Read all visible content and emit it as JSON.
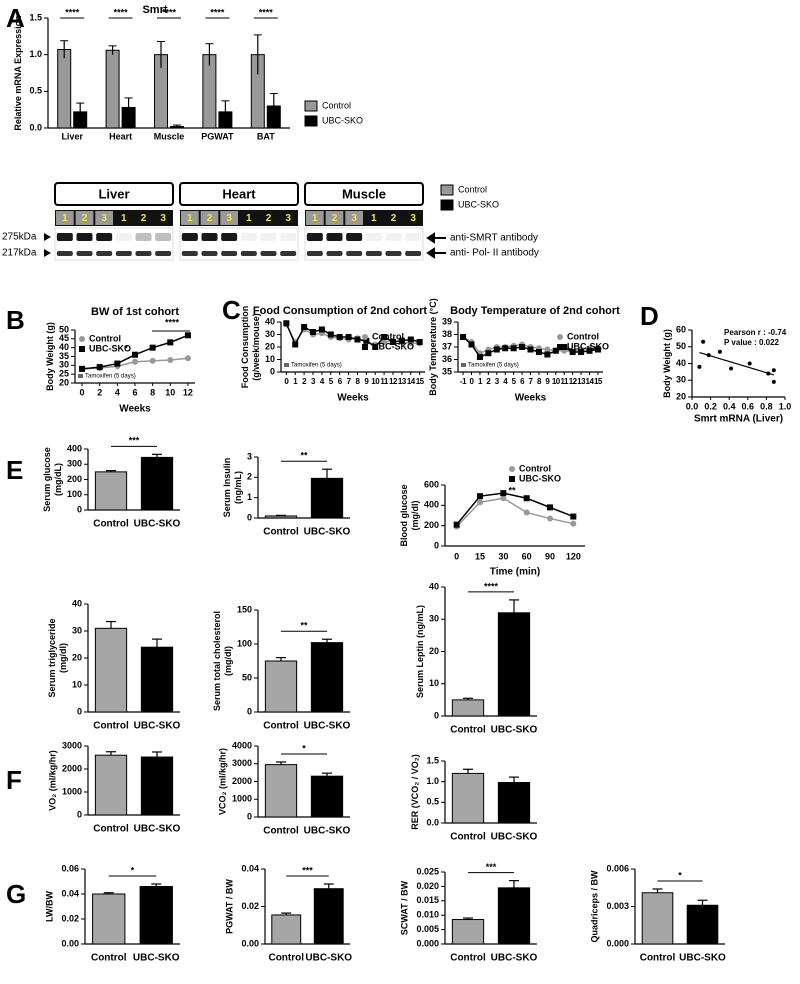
{
  "chart_data": [
    {
      "type": "grouped_bar",
      "panel": "A",
      "title": "Smrt",
      "ylabel": [
        "Relative mRNA Expression"
      ],
      "categories": [
        "Liver",
        "Heart",
        "Muscle",
        "PGWAT",
        "BAT"
      ],
      "series": [
        {
          "name": "Control",
          "color": "#999999",
          "values": [
            1.07,
            1.06,
            1.0,
            1.0,
            1.0
          ],
          "errors": [
            0.12,
            0.06,
            0.18,
            0.15,
            0.27
          ]
        },
        {
          "name": "UBC-SKO",
          "color": "#000000",
          "values": [
            0.22,
            0.28,
            0.02,
            0.22,
            0.3
          ],
          "errors": [
            0.12,
            0.13,
            0.02,
            0.15,
            0.17
          ]
        }
      ],
      "significance": [
        "****",
        "****",
        "****",
        "****",
        "****"
      ],
      "ylim": [
        0,
        1.5
      ],
      "yticks": [
        {
          "value": 0,
          "label": "0.0"
        },
        {
          "value": 0.5,
          "label": "0.5"
        },
        {
          "value": 1,
          "label": "1.0"
        },
        {
          "value": 1.5,
          "label": "1.5"
        }
      ]
    },
    {
      "type": "line",
      "panel": "B",
      "title": "BW of 1st cohort",
      "ylabel": [
        "Body Weight (g)"
      ],
      "xlabel": "Weeks",
      "x": [
        0,
        2,
        4,
        6,
        8,
        10,
        12
      ],
      "series": [
        {
          "name": "Control",
          "color": "#999999",
          "marker": "circle",
          "values": [
            28,
            28.5,
            29.5,
            32,
            32.5,
            33,
            34
          ]
        },
        {
          "name": "UBC-SKO",
          "color": "#000000",
          "marker": "square",
          "values": [
            28,
            29,
            31,
            36,
            40,
            43,
            47
          ]
        }
      ],
      "notes": [
        "*",
        "****"
      ],
      "treatment": "Tamoxifen (5 days)",
      "xlim": [
        -0.8,
        12.8
      ],
      "xticks": [
        0,
        2,
        4,
        6,
        8,
        10,
        12
      ],
      "ylim": [
        20,
        50
      ],
      "yticks": [
        20,
        25,
        30,
        35,
        40,
        45,
        50
      ]
    },
    {
      "type": "line",
      "panel": "C",
      "title": "Food Consumption of 2nd cohort",
      "ylabel": [
        "Food Consumption",
        "(g/week/mouse)"
      ],
      "xlabel": "Weeks",
      "x": [
        0,
        1,
        2,
        3,
        4,
        5,
        6,
        7,
        8,
        9,
        10,
        11,
        12,
        13,
        14,
        15
      ],
      "series": [
        {
          "name": "Control",
          "color": "#999999",
          "marker": "circle",
          "values": [
            38,
            24,
            34,
            30,
            31,
            28,
            27,
            26,
            27,
            24,
            22,
            24,
            25,
            24,
            23,
            23
          ]
        },
        {
          "name": "UBC-SKO",
          "color": "#000000",
          "marker": "square",
          "values": [
            39,
            22,
            36,
            32,
            34,
            30,
            28,
            28,
            26,
            25,
            20,
            28,
            24,
            25,
            26,
            24
          ]
        }
      ],
      "treatment": "Tamoxifen (5 days)",
      "xlim": [
        -0.6,
        15.6
      ],
      "xticks": [
        0,
        1,
        2,
        3,
        4,
        5,
        6,
        7,
        8,
        9,
        10,
        11,
        12,
        13,
        14,
        15
      ],
      "ylim": [
        0,
        40
      ],
      "yticks": [
        0,
        10,
        20,
        30,
        40
      ]
    },
    {
      "type": "line",
      "title": "Body Temperature of 2nd cohort",
      "ylabel": [
        "Body Temperature (°C)"
      ],
      "xlabel": "Weeks",
      "x": [
        -1,
        0,
        1,
        2,
        3,
        4,
        5,
        6,
        7,
        8,
        9,
        10,
        11,
        12,
        13,
        14,
        15
      ],
      "series": [
        {
          "name": "Control",
          "color": "#999999",
          "marker": "circle",
          "values": [
            37.8,
            37.4,
            36.5,
            36.8,
            37.0,
            37.0,
            37.1,
            37.2,
            37.0,
            36.9,
            36.8,
            36.7,
            36.7,
            36.6,
            36.8,
            36.9,
            36.9
          ]
        },
        {
          "name": "UBC-SKO",
          "color": "#000000",
          "marker": "square",
          "values": [
            37.8,
            37.2,
            36.2,
            36.5,
            36.8,
            36.9,
            36.9,
            37.0,
            36.8,
            36.6,
            36.4,
            36.7,
            37.0,
            36.6,
            36.6,
            36.7,
            36.8
          ]
        }
      ],
      "treatment": "Tamoxifen (5 days)",
      "xlim": [
        -1.6,
        15.6
      ],
      "xticks": [
        -1,
        0,
        1,
        2,
        3,
        4,
        5,
        6,
        7,
        8,
        9,
        10,
        11,
        12,
        13,
        14,
        15
      ],
      "ylim": [
        35,
        39
      ],
      "yticks": [
        35,
        36,
        37,
        38,
        39
      ]
    },
    {
      "type": "scatter",
      "panel": "D",
      "ylabel": [
        "Body Weight (g)"
      ],
      "xlabel": "Smrt mRNA (Liver)",
      "x": [
        0.08,
        0.12,
        0.18,
        0.3,
        0.42,
        0.62,
        0.82,
        0.88,
        0.88
      ],
      "y": [
        38,
        53,
        45,
        47,
        37,
        40,
        34,
        29,
        36
      ],
      "notes": [
        "Pearson r : -0.74",
        "P value     : 0.022"
      ],
      "xlim": [
        0,
        1
      ],
      "xticks": [
        {
          "value": 0,
          "label": "0.0"
        },
        {
          "value": 0.2,
          "label": "0.2"
        },
        {
          "value": 0.4,
          "label": "0.4"
        },
        {
          "value": 0.6,
          "label": "0.6"
        },
        {
          "value": 0.8,
          "label": "0.8"
        },
        {
          "value": 1,
          "label": "1.0"
        }
      ],
      "ylim": [
        20,
        60
      ],
      "yticks": [
        20,
        30,
        40,
        50,
        60
      ]
    },
    {
      "type": "bar",
      "panel": "E",
      "ylabel": [
        "Serum glucose",
        "(mg/dL)"
      ],
      "categories": [
        "Control",
        "UBC-SKO"
      ],
      "colors": [
        "#a6a6a6",
        "#000000"
      ],
      "values": [
        250,
        345
      ],
      "errors": [
        8,
        20
      ],
      "significance": "***",
      "ylim": [
        0,
        400
      ],
      "yticks": [
        0,
        100,
        200,
        300,
        400
      ]
    },
    {
      "type": "bar",
      "ylabel": [
        "Serum Insulin",
        "(ng/mL)"
      ],
      "categories": [
        "Control",
        "UBC-SKO"
      ],
      "colors": [
        "#a6a6a6",
        "#000000"
      ],
      "values": [
        0.1,
        1.95
      ],
      "errors": [
        0.03,
        0.45
      ],
      "significance": "**",
      "ylim": [
        0,
        3
      ],
      "yticks": [
        0,
        1,
        2,
        3
      ]
    },
    {
      "type": "line",
      "ylabel": [
        "Blood  glucose",
        "(mg/dl)"
      ],
      "xlabel": "Time (min)",
      "categories": [
        "0",
        "15",
        "30",
        "60",
        "90",
        "120"
      ],
      "series": [
        {
          "name": "Control",
          "color": "#999999",
          "marker": "circle",
          "values": [
            190,
            430,
            470,
            330,
            270,
            220
          ]
        },
        {
          "name": "UBC-SKO",
          "color": "#000000",
          "marker": "square",
          "values": [
            210,
            490,
            520,
            470,
            380,
            290
          ]
        }
      ],
      "notes": [
        "**"
      ],
      "ylim": [
        0,
        600
      ],
      "yticks": [
        0,
        200,
        400,
        600
      ]
    },
    {
      "type": "bar",
      "ylabel": [
        "Serum triglyceride",
        "(mg/dl)"
      ],
      "categories": [
        "Control",
        "UBC-SKO"
      ],
      "colors": [
        "#a6a6a6",
        "#000000"
      ],
      "values": [
        31,
        24
      ],
      "errors": [
        2.5,
        3
      ],
      "ylim": [
        0,
        40
      ],
      "yticks": [
        0,
        10,
        20,
        30,
        40
      ]
    },
    {
      "type": "bar",
      "ylabel": [
        "Serum total cholesterol",
        "(mg/dl)"
      ],
      "categories": [
        "Control",
        "UBC-SKO"
      ],
      "colors": [
        "#a6a6a6",
        "#000000"
      ],
      "values": [
        75,
        102
      ],
      "errors": [
        5,
        5
      ],
      "significance": "**",
      "ylim": [
        0,
        150
      ],
      "yticks": [
        0,
        50,
        100,
        150
      ]
    },
    {
      "type": "bar",
      "ylabel": [
        "Serum Leptin (ng/mL)"
      ],
      "categories": [
        "Control",
        "UBC-SKO"
      ],
      "colors": [
        "#a6a6a6",
        "#000000"
      ],
      "values": [
        5,
        32
      ],
      "errors": [
        0.5,
        4
      ],
      "significance": "****",
      "ylim": [
        0,
        40
      ],
      "yticks": [
        0,
        10,
        20,
        30,
        40
      ]
    },
    {
      "type": "bar",
      "panel": "F",
      "ylabel": [
        "VO₂ (ml/kg/hr)"
      ],
      "categories": [
        "Control",
        "UBC-SKO"
      ],
      "colors": [
        "#a6a6a6",
        "#000000"
      ],
      "values": [
        2600,
        2520
      ],
      "errors": [
        150,
        220
      ],
      "ylim": [
        0,
        3000
      ],
      "yticks": [
        0,
        1000,
        2000,
        3000
      ]
    },
    {
      "type": "bar",
      "ylabel": [
        "VCO₂ (ml/kg/hr)"
      ],
      "categories": [
        "Control",
        "UBC-SKO"
      ],
      "colors": [
        "#a6a6a6",
        "#000000"
      ],
      "values": [
        2950,
        2300
      ],
      "errors": [
        150,
        170
      ],
      "significance": "*",
      "ylim": [
        0,
        4000
      ],
      "yticks": [
        0,
        1000,
        2000,
        3000,
        4000
      ]
    },
    {
      "type": "bar",
      "ylabel": [
        "RER  (VCO₂ / VO₂)"
      ],
      "categories": [
        "Control",
        "UBC-SKO"
      ],
      "colors": [
        "#a6a6a6",
        "#000000"
      ],
      "values": [
        1.2,
        0.98
      ],
      "errors": [
        0.1,
        0.13
      ],
      "ylim": [
        0,
        1.5
      ],
      "yticks": [
        {
          "value": 0,
          "label": "0.0"
        },
        {
          "value": 0.5,
          "label": "0.5"
        },
        {
          "value": 1,
          "label": "1.0"
        },
        {
          "value": 1.5,
          "label": "1.5"
        }
      ]
    },
    {
      "type": "bar",
      "panel": "G",
      "ylabel": [
        "LW/BW"
      ],
      "categories": [
        "Control",
        "UBC-SKO"
      ],
      "colors": [
        "#a6a6a6",
        "#000000"
      ],
      "values": [
        0.04,
        0.046
      ],
      "errors": [
        0.001,
        0.002
      ],
      "significance": "*",
      "ylim": [
        0,
        0.06
      ],
      "yticks": [
        {
          "value": 0,
          "label": "0.00"
        },
        0.02,
        0.04,
        0.06
      ]
    },
    {
      "type": "bar",
      "ylabel": [
        "PGWAT / BW"
      ],
      "categories": [
        "Control",
        "UBC-SKO"
      ],
      "colors": [
        "#a6a6a6",
        "#000000"
      ],
      "values": [
        0.0155,
        0.0295
      ],
      "errors": [
        0.001,
        0.0025
      ],
      "significance": "***",
      "ylim": [
        0,
        0.04
      ],
      "yticks": [
        {
          "value": 0,
          "label": "0.00"
        },
        0.02,
        0.04
      ]
    },
    {
      "type": "bar",
      "ylabel": [
        "SCWAT / BW"
      ],
      "categories": [
        "Control",
        "UBC-SKO"
      ],
      "colors": [
        "#a6a6a6",
        "#000000"
      ],
      "values": [
        0.0085,
        0.0195
      ],
      "errors": [
        0.0005,
        0.0025
      ],
      "significance": "***",
      "ylim": [
        0,
        0.025
      ],
      "yticks": [
        {
          "value": 0,
          "label": "0.000"
        },
        0.005,
        {
          "value": 0.01,
          "label": "0.010"
        },
        0.015,
        {
          "value": 0.02,
          "label": "0.020"
        },
        0.025
      ]
    },
    {
      "type": "bar",
      "ylabel": [
        "Quadriceps / BW"
      ],
      "categories": [
        "Control",
        "UBC-SKO"
      ],
      "colors": [
        "#a6a6a6",
        "#000000"
      ],
      "values": [
        0.0041,
        0.0031
      ],
      "errors": [
        0.0003,
        0.0004
      ],
      "significance": "*",
      "ylim": [
        0,
        0.006
      ],
      "yticks": [
        {
          "value": 0,
          "label": "0.000"
        },
        0.003,
        0.006
      ]
    }
  ],
  "blot": {
    "tissues": [
      "Liver",
      "Heart",
      "Muscle"
    ],
    "lanes": [
      "1",
      "2",
      "3",
      "1",
      "2",
      "3"
    ],
    "markers": [
      "275kDa",
      "217kDa"
    ],
    "antibodies": [
      "anti-SMRT antibody",
      "anti- Pol- II antibody"
    ],
    "legend": [
      {
        "name": "Control",
        "color": "#999999"
      },
      {
        "name": "UBC-SKO",
        "color": "#000000"
      }
    ]
  }
}
